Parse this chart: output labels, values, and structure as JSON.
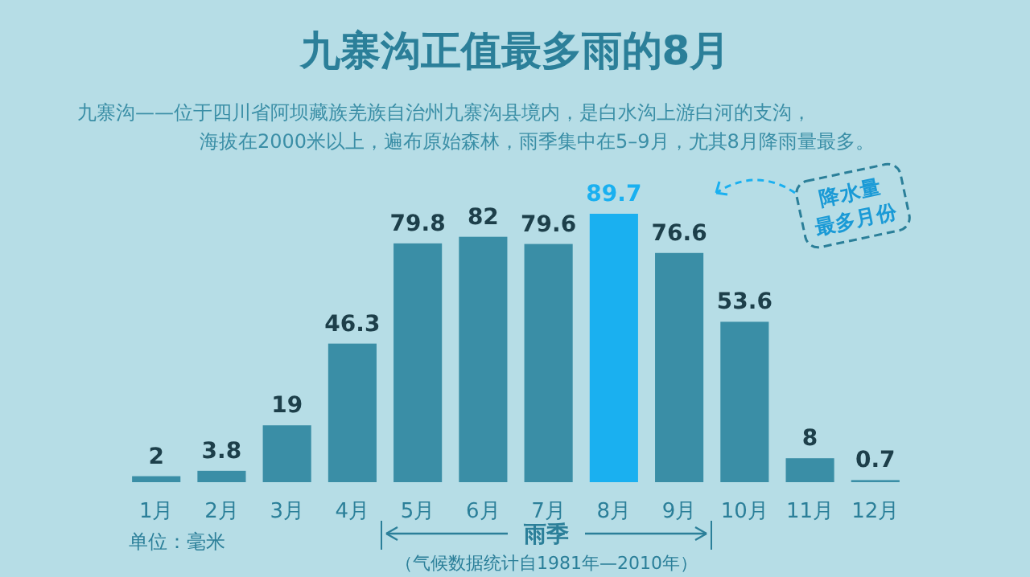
{
  "chart_data": {
    "type": "bar",
    "title": "九寨沟正值最多雨的8月",
    "subtitle": "九寨沟——位于四川省阿坝藏族羌族自治州九寨沟县境内，是白水沟上游白河的支沟，海拔在2000米以上，遍布原始森林，雨季集中在5–9月，尤其8月降雨量最多。",
    "categories": [
      "1月",
      "2月",
      "3月",
      "4月",
      "5月",
      "6月",
      "7月",
      "8月",
      "9月",
      "10月",
      "11月",
      "12月"
    ],
    "values": [
      2,
      3.8,
      19,
      46.3,
      79.8,
      82,
      79.6,
      89.7,
      76.6,
      53.6,
      8,
      0.7
    ],
    "colors": [
      "#3a8ea6",
      "#3a8ea6",
      "#3a8ea6",
      "#3a8ea6",
      "#3a8ea6",
      "#3a8ea6",
      "#3a8ea6",
      "#1ab0f0",
      "#3a8ea6",
      "#3a8ea6",
      "#3a8ea6",
      "#3a8ea6"
    ],
    "data_labels": true,
    "annotations": [
      "降水量最多月份",
      "单位：毫米",
      "雨季",
      "（气候数据统计自1981年—2010年）"
    ]
  }
}
